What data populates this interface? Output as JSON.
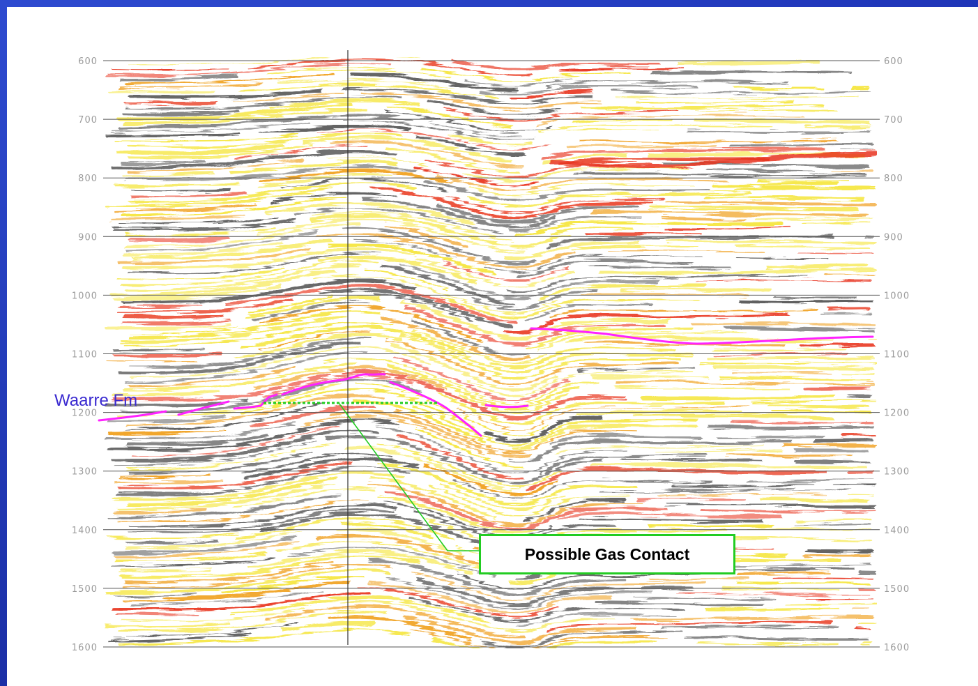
{
  "axis": {
    "left_ticks": [
      "600",
      "700",
      "800",
      "900",
      "1000",
      "1100",
      "1200",
      "1300",
      "1400",
      "1500",
      "1600"
    ],
    "right_ticks": [
      "600",
      "700",
      "800",
      "900",
      "1000",
      "1100",
      "1200",
      "1300",
      "1400",
      "1500",
      "1600"
    ]
  },
  "annotations": {
    "formation_label": "Waarre Fm",
    "contact_label": "Possible Gas Contact"
  },
  "colors": {
    "frame": "#2440c4",
    "horizon_pick": "#ff22ff",
    "gas_contact": "#22cc22",
    "formation_label": "#3a2ad0",
    "peak_strong": "#e8341c",
    "peak_mid": "#f0a020",
    "peak_weak": "#f5e640",
    "trough": "#3a3a3a"
  }
}
